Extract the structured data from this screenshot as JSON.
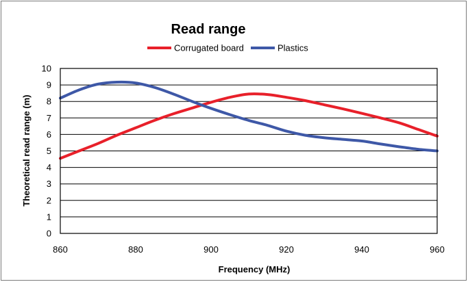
{
  "chart_data": {
    "type": "line",
    "title": "Read range",
    "xlabel": "Frequency (MHz)",
    "ylabel": "Theoretical read range (m)",
    "xlim": [
      860,
      960
    ],
    "ylim": [
      0,
      10
    ],
    "x_ticks": [
      860,
      880,
      900,
      920,
      940,
      960
    ],
    "y_ticks": [
      0,
      1,
      2,
      3,
      4,
      5,
      6,
      7,
      8,
      9,
      10
    ],
    "grid": "horizontal",
    "legend_position": "top",
    "series": [
      {
        "name": "Corrugated board",
        "color": "#e8202a",
        "x": [
          860,
          865,
          870,
          875,
          880,
          885,
          890,
          895,
          900,
          905,
          910,
          915,
          920,
          925,
          930,
          935,
          940,
          945,
          950,
          955,
          960
        ],
        "y": [
          4.55,
          5.0,
          5.45,
          5.95,
          6.4,
          6.85,
          7.25,
          7.6,
          7.95,
          8.25,
          8.45,
          8.42,
          8.25,
          8.05,
          7.8,
          7.55,
          7.28,
          7.0,
          6.7,
          6.3,
          5.9
        ]
      },
      {
        "name": "Plastics",
        "color": "#3e58a7",
        "x": [
          860,
          865,
          870,
          875,
          880,
          885,
          890,
          895,
          900,
          905,
          910,
          915,
          920,
          925,
          930,
          935,
          940,
          945,
          950,
          955,
          960
        ],
        "y": [
          8.2,
          8.7,
          9.05,
          9.17,
          9.12,
          8.85,
          8.45,
          8.0,
          7.58,
          7.2,
          6.85,
          6.55,
          6.2,
          5.95,
          5.8,
          5.7,
          5.6,
          5.42,
          5.25,
          5.1,
          5.0
        ]
      }
    ]
  }
}
